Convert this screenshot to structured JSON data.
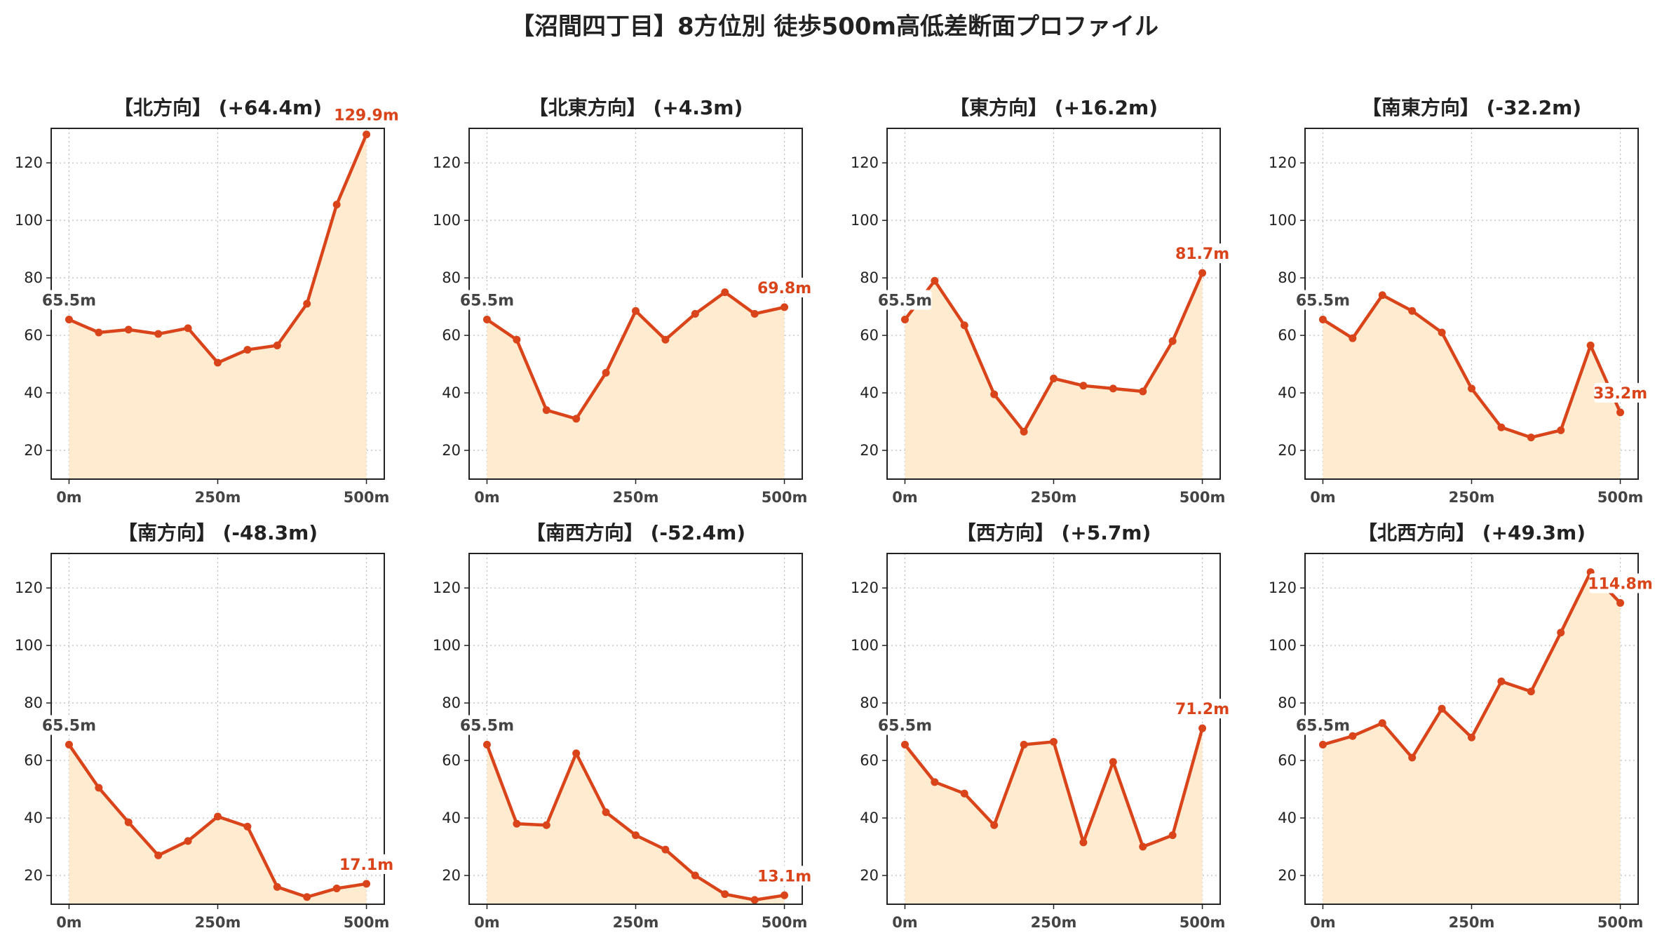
{
  "title": "【沼間四丁目】8方位別 徒歩500m高低差断面プロファイル",
  "colors": {
    "line": "#d9441a",
    "fill": "#ffecd0",
    "grid": "#bbbbbb",
    "end_label": "#d9441a",
    "start_label": "#444444"
  },
  "chart_data": {
    "type": "line",
    "grid": true,
    "ylim": [
      10,
      132
    ],
    "xlim": [
      -30,
      530
    ],
    "yticks": [
      20,
      40,
      60,
      80,
      100,
      120
    ],
    "xticks": [
      0,
      250,
      500
    ],
    "xtick_labels": [
      "0m",
      "250m",
      "500m"
    ],
    "x": [
      0,
      50,
      100,
      150,
      200,
      250,
      300,
      350,
      400,
      450,
      500
    ],
    "panels": [
      {
        "title": "【北方向】 (+64.4m)",
        "start_label": "65.5m",
        "end_label": "129.9m",
        "values": [
          65.5,
          61,
          62,
          60.5,
          62.5,
          50.5,
          55,
          56.5,
          71,
          105.5,
          129.9
        ]
      },
      {
        "title": "【北東方向】 (+4.3m)",
        "start_label": "65.5m",
        "end_label": "69.8m",
        "values": [
          65.5,
          58.5,
          34,
          31,
          47,
          68.5,
          58.5,
          67.5,
          75,
          67.5,
          69.8
        ]
      },
      {
        "title": "【東方向】 (+16.2m)",
        "start_label": "65.5m",
        "end_label": "81.7m",
        "values": [
          65.5,
          79,
          63.5,
          39.5,
          26.5,
          45,
          42.5,
          41.5,
          40.5,
          58,
          81.7
        ]
      },
      {
        "title": "【南東方向】 (-32.2m)",
        "start_label": "65.5m",
        "end_label": "33.2m",
        "values": [
          65.5,
          59,
          74,
          68.5,
          61,
          41.5,
          28,
          24.5,
          27,
          56.5,
          33.2
        ]
      },
      {
        "title": "【南方向】 (-48.3m)",
        "start_label": "65.5m",
        "end_label": "17.1m",
        "values": [
          65.5,
          50.5,
          38.5,
          27,
          32,
          40.5,
          37,
          16,
          12.5,
          15.5,
          17.1
        ]
      },
      {
        "title": "【南西方向】 (-52.4m)",
        "start_label": "65.5m",
        "end_label": "13.1m",
        "values": [
          65.5,
          38,
          37.5,
          62.5,
          42,
          34,
          29,
          20,
          13.5,
          11.5,
          13.1
        ]
      },
      {
        "title": "【西方向】 (+5.7m)",
        "start_label": "65.5m",
        "end_label": "71.2m",
        "values": [
          65.5,
          52.5,
          48.5,
          37.5,
          65.5,
          66.5,
          31.5,
          59.5,
          30,
          34,
          71.2
        ]
      },
      {
        "title": "【北西方向】 (+49.3m)",
        "start_label": "65.5m",
        "end_label": "114.8m",
        "values": [
          65.5,
          68.5,
          73,
          61,
          78,
          68,
          87.5,
          84,
          104.5,
          125.5,
          114.8
        ]
      }
    ]
  }
}
